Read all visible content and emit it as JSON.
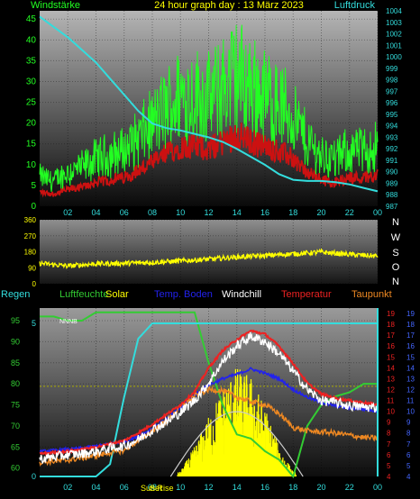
{
  "header": {
    "left_label": "Windstärke",
    "title": "24 hour graph day : 13 März 2023",
    "right_label": "Luftdruck"
  },
  "colors": {
    "wind": "#22ff22",
    "gust_dark": "#cc1111",
    "pressure": "#33dddd",
    "direction": "#ffff00",
    "temp": "#ee2222",
    "windchill": "#ffffff",
    "dewpoint": "#ee8822",
    "indoor": "#2222ee",
    "humidity": "#33cc33",
    "rain": "#33dddd",
    "solar": "#ffff00",
    "sun": "#cccccc"
  },
  "hour_ticks": [
    "02",
    "04",
    "06",
    "08",
    "10",
    "12",
    "14",
    "16",
    "18",
    "20",
    "22",
    "00"
  ],
  "panel1": {
    "wind_ticks": [
      "0",
      "5",
      "10",
      "15",
      "20",
      "25",
      "30",
      "35",
      "40",
      "45"
    ],
    "pressure_ticks": [
      "987",
      "988",
      "989",
      "990",
      "991",
      "992",
      "993",
      "994",
      "995",
      "996",
      "997",
      "998",
      "999",
      "1000",
      "1001",
      "1002",
      "1003",
      "1004"
    ]
  },
  "panel2": {
    "deg_ticks": [
      "360",
      "270",
      "180",
      "90",
      "0"
    ],
    "compass": [
      "N",
      "W",
      "S",
      "O",
      "N"
    ]
  },
  "legend": {
    "rain": "Regen",
    "humidity": "Luftfeuchte",
    "solar": "Solar",
    "indoor": "Temp. Boden",
    "windchill": "Windchill",
    "temp": "Temperatur",
    "dewpoint": "Taupunkt"
  },
  "panel3": {
    "humidity_ticks": [
      "60",
      "65",
      "70",
      "75",
      "80",
      "85",
      "90",
      "95"
    ],
    "rain_ticks": [
      "0",
      "5"
    ],
    "temp_ticks_red": [
      "4",
      "5",
      "6",
      "7",
      "8",
      "9",
      "10",
      "11",
      "12",
      "13",
      "14",
      "15",
      "16",
      "17",
      "18",
      "19"
    ],
    "temp_ticks_blue": [
      "4",
      "5",
      "6",
      "7",
      "8",
      "9",
      "10",
      "11",
      "12",
      "13",
      "14",
      "15",
      "16",
      "17",
      "18",
      "19"
    ],
    "series_tag": "NNNB",
    "sunrise_label": "Sun Rise",
    "sunset_label": "Set"
  },
  "chart_data": [
    {
      "type": "line",
      "title": "24 hour graph day : 13 März 2023",
      "x": [
        0,
        1,
        2,
        3,
        4,
        5,
        6,
        7,
        8,
        9,
        10,
        11,
        12,
        13,
        14,
        15,
        16,
        17,
        18,
        19,
        20,
        21,
        22,
        23,
        24
      ],
      "series": [
        {
          "name": "Windstärke",
          "axis": "left",
          "values": [
            6,
            5,
            7,
            8,
            10,
            11,
            12,
            15,
            18,
            22,
            25,
            25,
            24,
            27,
            30,
            27,
            25,
            23,
            20,
            14,
            11,
            10,
            12,
            12,
            13
          ]
        },
        {
          "name": "Luftdruck",
          "axis": "right",
          "values": [
            1003.5,
            1002.6,
            1001.7,
            1000.6,
            999.5,
            998.1,
            996.7,
            995.3,
            994.2,
            993.8,
            993.6,
            993.3,
            993.0,
            992.6,
            992.0,
            991.3,
            990.6,
            989.8,
            989.3,
            989.2,
            989.2,
            989.1,
            988.9,
            988.6,
            988.3
          ]
        }
      ],
      "ylim_left": [
        0,
        47
      ],
      "ylim_right": [
        987,
        1004
      ],
      "xlabel": "",
      "ylabel": ""
    },
    {
      "type": "line",
      "x": [
        0,
        2,
        4,
        6,
        8,
        10,
        12,
        14,
        16,
        18,
        20,
        22,
        24
      ],
      "series": [
        {
          "name": "direction",
          "values": [
            115,
            100,
            112,
            115,
            120,
            128,
            138,
            150,
            158,
            168,
            178,
            165,
            155
          ]
        }
      ],
      "ylim": [
        0,
        360
      ]
    },
    {
      "type": "line",
      "x": [
        0,
        1,
        2,
        3,
        4,
        5,
        6,
        7,
        8,
        9,
        10,
        11,
        12,
        13,
        14,
        15,
        16,
        17,
        18,
        19,
        20,
        21,
        22,
        23,
        24
      ],
      "series": [
        {
          "name": "Temperatur",
          "axis": "temp",
          "values": [
            6.1,
            6.2,
            6.3,
            6.5,
            6.7,
            7.0,
            7.3,
            8.0,
            8.8,
            9.7,
            10.6,
            11.8,
            14.0,
            15.6,
            16.6,
            17.4,
            17.1,
            16.0,
            14.4,
            12.6,
            11.6,
            11.2,
            11.0,
            10.8,
            10.6
          ]
        },
        {
          "name": "Windchill",
          "axis": "temp",
          "values": [
            5.6,
            5.8,
            6.0,
            6.1,
            6.3,
            6.6,
            6.8,
            7.4,
            8.3,
            9.0,
            9.9,
            11.0,
            12.6,
            14.6,
            16.0,
            16.9,
            16.4,
            15.3,
            13.7,
            12.0,
            11.0,
            10.8,
            10.5,
            10.4,
            10.3
          ]
        },
        {
          "name": "Taupunkt",
          "axis": "temp",
          "values": [
            5.3,
            5.4,
            5.5,
            5.7,
            5.9,
            6.2,
            6.4,
            7.3,
            8.2,
            9.1,
            10.4,
            11.4,
            12.0,
            11.9,
            11.3,
            10.9,
            10.6,
            9.8,
            8.5,
            8.2,
            8.1,
            8.0,
            7.8,
            7.6,
            7.5
          ]
        },
        {
          "name": "Temp. Boden",
          "axis": "temp",
          "values": [
            6.3,
            6.4,
            6.5,
            6.6,
            6.8,
            7.0,
            7.2,
            7.7,
            8.4,
            9.3,
            10.3,
            11.5,
            12.4,
            13.0,
            13.4,
            13.9,
            13.5,
            13.0,
            12.0,
            11.3,
            10.8,
            10.5,
            10.3,
            10.2,
            10.0
          ]
        },
        {
          "name": "Luftfeuchte",
          "axis": "humidity",
          "values": [
            96,
            96,
            95,
            95,
            97,
            97,
            97,
            97,
            97,
            97,
            97,
            97,
            85,
            75,
            68,
            67,
            64,
            62,
            58,
            70,
            75,
            77,
            78,
            80,
            80
          ]
        },
        {
          "name": "Regen",
          "axis": "rain",
          "values": [
            0,
            0,
            0,
            0,
            0,
            0.4,
            2.6,
            4.5,
            5.0,
            5.0,
            5.0,
            5.0,
            5.0,
            5.0,
            5.0,
            5.0,
            5.0,
            5.0,
            5.0,
            5.0,
            5.0,
            5.0,
            5.0,
            5.0,
            5.0
          ]
        },
        {
          "name": "Solar",
          "axis": "humidity",
          "values": [
            0,
            0,
            0,
            0,
            0,
            0,
            0,
            0,
            0,
            0,
            0.5,
            3,
            6,
            9,
            11,
            10,
            7,
            3,
            0.5,
            0,
            0,
            0,
            0,
            0,
            0
          ]
        }
      ],
      "ylim_humidity": [
        58,
        98
      ],
      "ylim_temp": [
        4,
        19.5
      ],
      "ylim_rain": [
        0,
        5.5
      ]
    }
  ]
}
